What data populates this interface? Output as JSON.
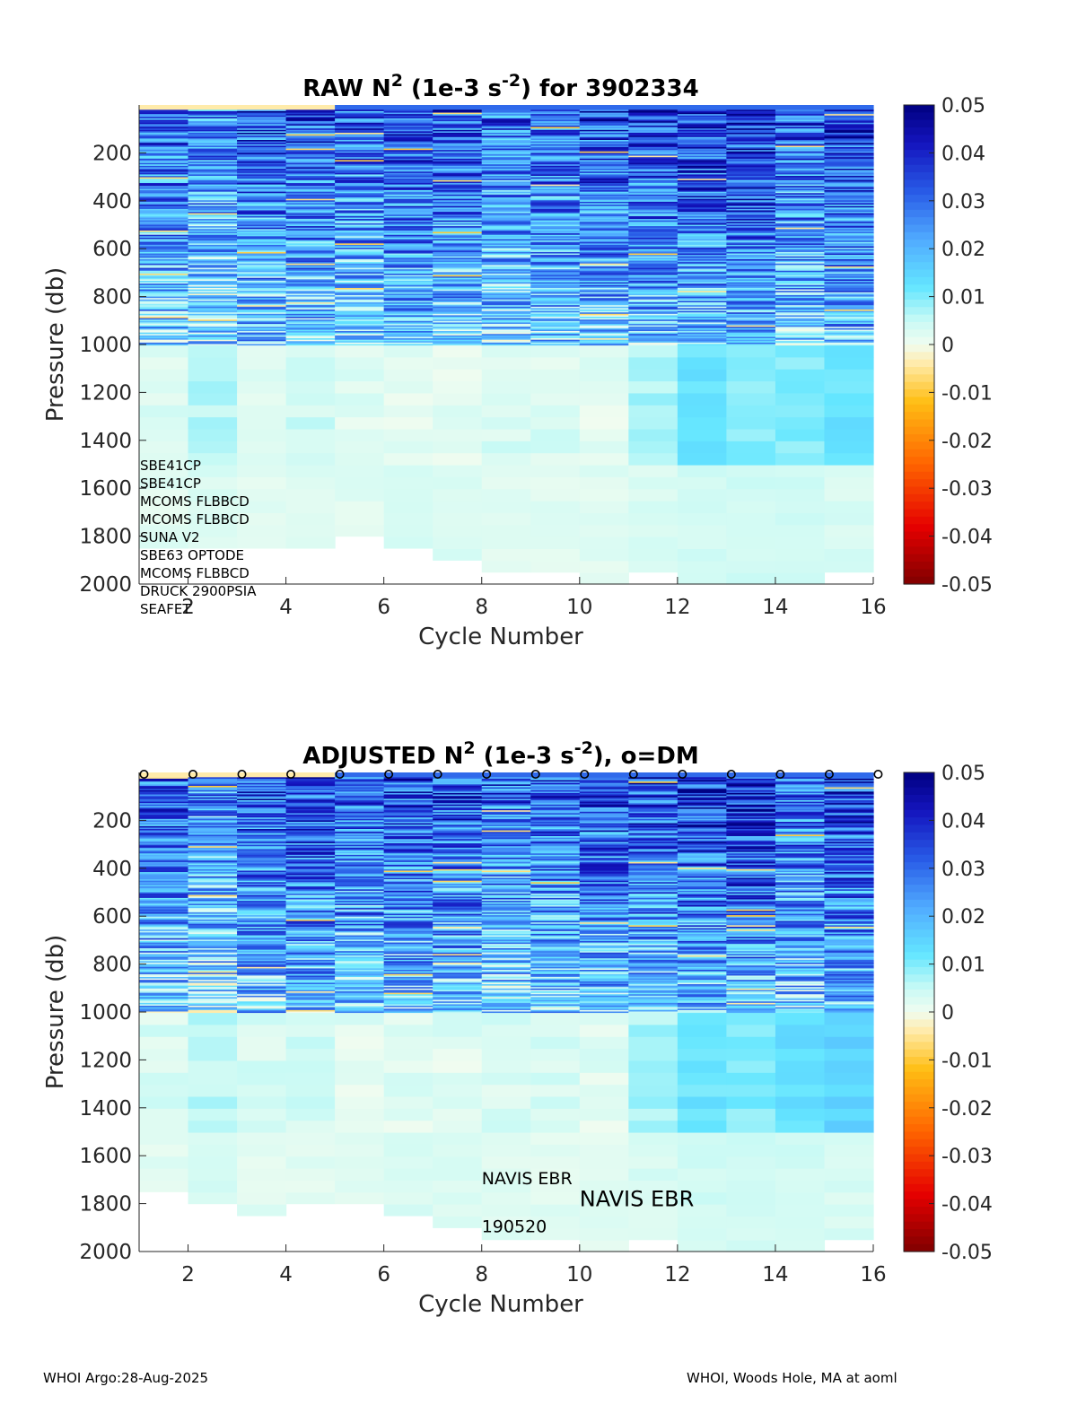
{
  "footer": {
    "left": "WHOI Argo:28-Aug-2025",
    "right": "WHOI, Woods Hole, MA at aoml"
  },
  "chart_data": [
    {
      "type": "heatmap",
      "title_parts": [
        "RAW N",
        "2",
        " (1e-3 s",
        "-2",
        ") for 3902334"
      ],
      "xlabel": "Cycle Number",
      "ylabel": "Pressure (db)",
      "xlim": [
        1,
        16
      ],
      "ylim": [
        0,
        2000
      ],
      "y_reversed": true,
      "xticks": [
        2,
        4,
        6,
        8,
        10,
        12,
        14,
        16
      ],
      "yticks": [
        200,
        400,
        600,
        800,
        1000,
        1200,
        1400,
        1600,
        1800,
        2000
      ],
      "colorbar": {
        "ticks": [
          0.05,
          0.04,
          0.03,
          0.02,
          0.01,
          0,
          -0.01,
          -0.02,
          -0.03,
          -0.04,
          -0.05
        ],
        "clim": [
          -0.05,
          0.05
        ]
      },
      "cycles": [
        1,
        2,
        3,
        4,
        5,
        6,
        7,
        8,
        9,
        10,
        11,
        12,
        13,
        14,
        15
      ],
      "max_pressure": [
        1850,
        1850,
        1850,
        1850,
        1800,
        1850,
        1900,
        1950,
        1950,
        2000,
        1950,
        2000,
        2000,
        2000,
        1950
      ],
      "upper_mean_N2": [
        0.032,
        0.026,
        0.034,
        0.035,
        0.032,
        0.035,
        0.034,
        0.03,
        0.033,
        0.035,
        0.036,
        0.038,
        0.04,
        0.032,
        0.038
      ],
      "deep_N2_1000_1500": [
        0.003,
        0.006,
        0.003,
        0.004,
        0.002,
        0.002,
        0.002,
        0.003,
        0.003,
        0.002,
        0.007,
        0.012,
        0.01,
        0.01,
        0.012
      ],
      "deep_N2_1500_2000": [
        0.002,
        0.003,
        0.002,
        0.002,
        0.002,
        0.003,
        0.003,
        0.002,
        0.002,
        0.002,
        0.003,
        0.004,
        0.004,
        0.004,
        0.003
      ],
      "sensor_labels": [
        "SBE41CP",
        "SBE41CP",
        "MCOMS FLBBCD",
        "MCOMS FLBBCD",
        "SUNA V2",
        "SBE63 OPTODE",
        "MCOMS FLBBCD",
        "DRUCK 2900PSIA",
        "SEAFET"
      ]
    },
    {
      "type": "heatmap",
      "title_parts": [
        "ADJUSTED N",
        "2",
        " (1e-3 s",
        "-2",
        "), o=DM"
      ],
      "xlabel": "Cycle Number",
      "ylabel": "Pressure (db)",
      "xlim": [
        1,
        16
      ],
      "ylim": [
        0,
        2000
      ],
      "y_reversed": true,
      "xticks": [
        2,
        4,
        6,
        8,
        10,
        12,
        14,
        16
      ],
      "yticks": [
        200,
        400,
        600,
        800,
        1000,
        1200,
        1400,
        1600,
        1800,
        2000
      ],
      "colorbar": {
        "ticks": [
          0.05,
          0.04,
          0.03,
          0.02,
          0.01,
          0,
          -0.01,
          -0.02,
          -0.03,
          -0.04,
          -0.05
        ],
        "clim": [
          -0.05,
          0.05
        ]
      },
      "cycles": [
        1,
        2,
        3,
        4,
        5,
        6,
        7,
        8,
        9,
        10,
        11,
        12,
        13,
        14,
        15
      ],
      "max_pressure": [
        1750,
        1800,
        1850,
        1800,
        1800,
        1850,
        1900,
        1950,
        1950,
        2000,
        1950,
        2000,
        2000,
        2000,
        1950
      ],
      "upper_mean_N2": [
        0.032,
        0.026,
        0.034,
        0.035,
        0.032,
        0.035,
        0.034,
        0.03,
        0.033,
        0.035,
        0.036,
        0.038,
        0.04,
        0.032,
        0.038
      ],
      "deep_N2_1000_1500": [
        0.003,
        0.006,
        0.003,
        0.004,
        0.002,
        0.002,
        0.002,
        0.003,
        0.003,
        0.002,
        0.007,
        0.012,
        0.01,
        0.013,
        0.015
      ],
      "deep_N2_1500_2000": [
        0.002,
        0.003,
        0.002,
        0.002,
        0.002,
        0.003,
        0.003,
        0.002,
        0.002,
        0.002,
        0.003,
        0.004,
        0.004,
        0.004,
        0.003
      ],
      "dm_marker_cycles": [
        1,
        2,
        3,
        4,
        5,
        6,
        7,
        8,
        9,
        10,
        11,
        12,
        13,
        14,
        15,
        16
      ],
      "annotations": [
        {
          "text": "NAVIS EBR",
          "x": 8,
          "y": 1720,
          "size": "small"
        },
        {
          "text": "NAVIS EBR",
          "x": 10,
          "y": 1810,
          "size": "large"
        },
        {
          "text": "190520",
          "x": 8,
          "y": 1920,
          "size": "small"
        }
      ]
    }
  ]
}
